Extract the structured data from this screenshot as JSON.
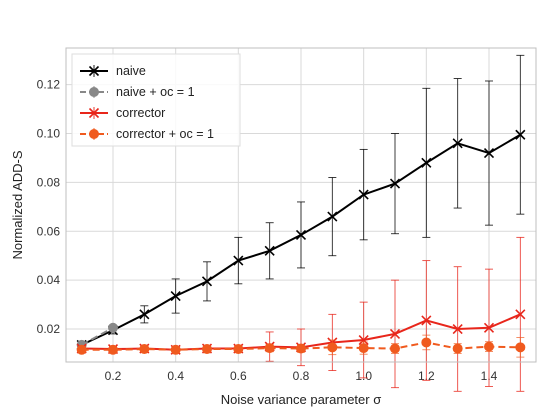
{
  "chart_data": {
    "type": "line",
    "title": "",
    "xlabel": "Noise variance parameter σ",
    "ylabel": "Normalized ADD-S",
    "xlim": [
      0.05,
      1.55
    ],
    "ylim": [
      0.0065,
      0.135
    ],
    "xticks": [
      0.2,
      0.4,
      0.6,
      0.8,
      1.0,
      1.2,
      1.4
    ],
    "xtick_labels": [
      "0.2",
      "0.4",
      "0.6",
      "0.8",
      "1.0",
      "1.2",
      "1.4"
    ],
    "yticks": [
      0.02,
      0.04,
      0.06,
      0.08,
      0.1,
      0.12
    ],
    "ytick_labels": [
      "0.02",
      "0.04",
      "0.06",
      "0.08",
      "0.10",
      "0.12"
    ],
    "grid": true,
    "legend_position": "top-left",
    "series": [
      {
        "name": "naive",
        "color": "#000000",
        "marker": "x",
        "linestyle": "solid",
        "x": [
          0.1,
          0.2,
          0.3,
          0.4,
          0.5,
          0.6,
          0.7,
          0.8,
          0.9,
          1.0,
          1.1,
          1.2,
          1.3,
          1.4,
          1.5
        ],
        "y": [
          0.0135,
          0.0195,
          0.026,
          0.0335,
          0.0395,
          0.048,
          0.052,
          0.0585,
          0.066,
          0.075,
          0.0795,
          0.088,
          0.096,
          0.092,
          0.0995
        ],
        "err": [
          0.001,
          0.0015,
          0.0035,
          0.007,
          0.008,
          0.0095,
          0.0115,
          0.0135,
          0.016,
          0.0185,
          0.0205,
          0.0305,
          0.0265,
          0.0295,
          0.0325
        ]
      },
      {
        "name": "naive + oc = 1",
        "color": "#888888",
        "marker": "o",
        "linestyle": "dashed",
        "x": [
          0.1,
          0.2
        ],
        "y": [
          0.0135,
          0.0205
        ],
        "err": [
          0.0005,
          0.0005
        ]
      },
      {
        "name": "corrector",
        "color": "#e8261b",
        "marker": "x",
        "linestyle": "solid",
        "x": [
          0.1,
          0.2,
          0.3,
          0.4,
          0.5,
          0.6,
          0.7,
          0.8,
          0.9,
          1.0,
          1.1,
          1.2,
          1.3,
          1.4,
          1.5
        ],
        "y": [
          0.012,
          0.0118,
          0.012,
          0.0115,
          0.012,
          0.012,
          0.0128,
          0.0125,
          0.0145,
          0.0155,
          0.018,
          0.0235,
          0.02,
          0.0205,
          0.026
        ],
        "err": [
          0.001,
          0.001,
          0.001,
          0.001,
          0.001,
          0.0012,
          0.006,
          0.0075,
          0.0115,
          0.0155,
          0.022,
          0.0245,
          0.0255,
          0.024,
          0.0315
        ]
      },
      {
        "name": "corrector + oc = 1",
        "color": "#f05a1e",
        "marker": "o",
        "linestyle": "dashed",
        "x": [
          0.1,
          0.2,
          0.3,
          0.4,
          0.5,
          0.6,
          0.7,
          0.8,
          0.9,
          1.0,
          1.1,
          1.2,
          1.3,
          1.4,
          1.5
        ],
        "y": [
          0.0115,
          0.0115,
          0.0118,
          0.0115,
          0.0118,
          0.0118,
          0.0122,
          0.012,
          0.0125,
          0.0122,
          0.012,
          0.0145,
          0.012,
          0.0128,
          0.0125
        ],
        "err": [
          0.001,
          0.001,
          0.001,
          0.001,
          0.001,
          0.001,
          0.0015,
          0.0015,
          0.003,
          0.0025,
          0.002,
          0.003,
          0.002,
          0.002,
          0.004
        ]
      }
    ]
  }
}
